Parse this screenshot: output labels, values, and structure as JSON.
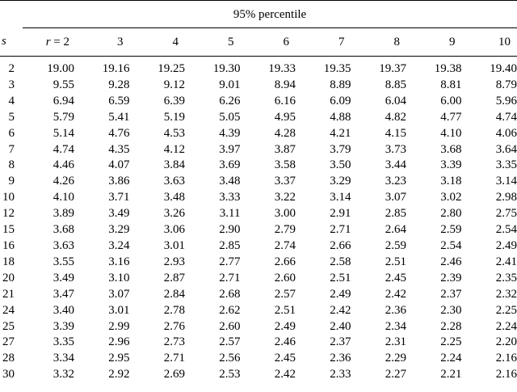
{
  "table": {
    "super_header": "95% percentile",
    "row_var_label": "s",
    "col_var_label": "r",
    "col_first_prefix": "r = ",
    "columns": [
      "2",
      "3",
      "4",
      "5",
      "6",
      "7",
      "8",
      "9",
      "10"
    ],
    "rows": [
      {
        "s": "2",
        "values": [
          "19.00",
          "19.16",
          "19.25",
          "19.30",
          "19.33",
          "19.35",
          "19.37",
          "19.38",
          "19.40"
        ]
      },
      {
        "s": "3",
        "values": [
          "9.55",
          "9.28",
          "9.12",
          "9.01",
          "8.94",
          "8.89",
          "8.85",
          "8.81",
          "8.79"
        ]
      },
      {
        "s": "4",
        "values": [
          "6.94",
          "6.59",
          "6.39",
          "6.26",
          "6.16",
          "6.09",
          "6.04",
          "6.00",
          "5.96"
        ]
      },
      {
        "s": "5",
        "values": [
          "5.79",
          "5.41",
          "5.19",
          "5.05",
          "4.95",
          "4.88",
          "4.82",
          "4.77",
          "4.74"
        ]
      },
      {
        "s": "6",
        "values": [
          "5.14",
          "4.76",
          "4.53",
          "4.39",
          "4.28",
          "4.21",
          "4.15",
          "4.10",
          "4.06"
        ]
      },
      {
        "s": "7",
        "values": [
          "4.74",
          "4.35",
          "4.12",
          "3.97",
          "3.87",
          "3.79",
          "3.73",
          "3.68",
          "3.64"
        ]
      },
      {
        "s": "8",
        "values": [
          "4.46",
          "4.07",
          "3.84",
          "3.69",
          "3.58",
          "3.50",
          "3.44",
          "3.39",
          "3.35"
        ]
      },
      {
        "s": "9",
        "values": [
          "4.26",
          "3.86",
          "3.63",
          "3.48",
          "3.37",
          "3.29",
          "3.23",
          "3.18",
          "3.14"
        ]
      },
      {
        "s": "10",
        "values": [
          "4.10",
          "3.71",
          "3.48",
          "3.33",
          "3.22",
          "3.14",
          "3.07",
          "3.02",
          "2.98"
        ]
      },
      {
        "s": "12",
        "values": [
          "3.89",
          "3.49",
          "3.26",
          "3.11",
          "3.00",
          "2.91",
          "2.85",
          "2.80",
          "2.75"
        ]
      },
      {
        "s": "15",
        "values": [
          "3.68",
          "3.29",
          "3.06",
          "2.90",
          "2.79",
          "2.71",
          "2.64",
          "2.59",
          "2.54"
        ]
      },
      {
        "s": "16",
        "values": [
          "3.63",
          "3.24",
          "3.01",
          "2.85",
          "2.74",
          "2.66",
          "2.59",
          "2.54",
          "2.49"
        ]
      },
      {
        "s": "18",
        "values": [
          "3.55",
          "3.16",
          "2.93",
          "2.77",
          "2.66",
          "2.58",
          "2.51",
          "2.46",
          "2.41"
        ]
      },
      {
        "s": "20",
        "values": [
          "3.49",
          "3.10",
          "2.87",
          "2.71",
          "2.60",
          "2.51",
          "2.45",
          "2.39",
          "2.35"
        ]
      },
      {
        "s": "21",
        "values": [
          "3.47",
          "3.07",
          "2.84",
          "2.68",
          "2.57",
          "2.49",
          "2.42",
          "2.37",
          "2.32"
        ]
      },
      {
        "s": "24",
        "values": [
          "3.40",
          "3.01",
          "2.78",
          "2.62",
          "2.51",
          "2.42",
          "2.36",
          "2.30",
          "2.25"
        ]
      },
      {
        "s": "25",
        "values": [
          "3.39",
          "2.99",
          "2.76",
          "2.60",
          "2.49",
          "2.40",
          "2.34",
          "2.28",
          "2.24"
        ]
      },
      {
        "s": "27",
        "values": [
          "3.35",
          "2.96",
          "2.73",
          "2.57",
          "2.46",
          "2.37",
          "2.31",
          "2.25",
          "2.20"
        ]
      },
      {
        "s": "28",
        "values": [
          "3.34",
          "2.95",
          "2.71",
          "2.56",
          "2.45",
          "2.36",
          "2.29",
          "2.24",
          "2.16"
        ]
      },
      {
        "s": "30",
        "values": [
          "3.32",
          "2.92",
          "2.69",
          "2.53",
          "2.42",
          "2.33",
          "2.27",
          "2.21",
          "2.16"
        ]
      }
    ]
  }
}
